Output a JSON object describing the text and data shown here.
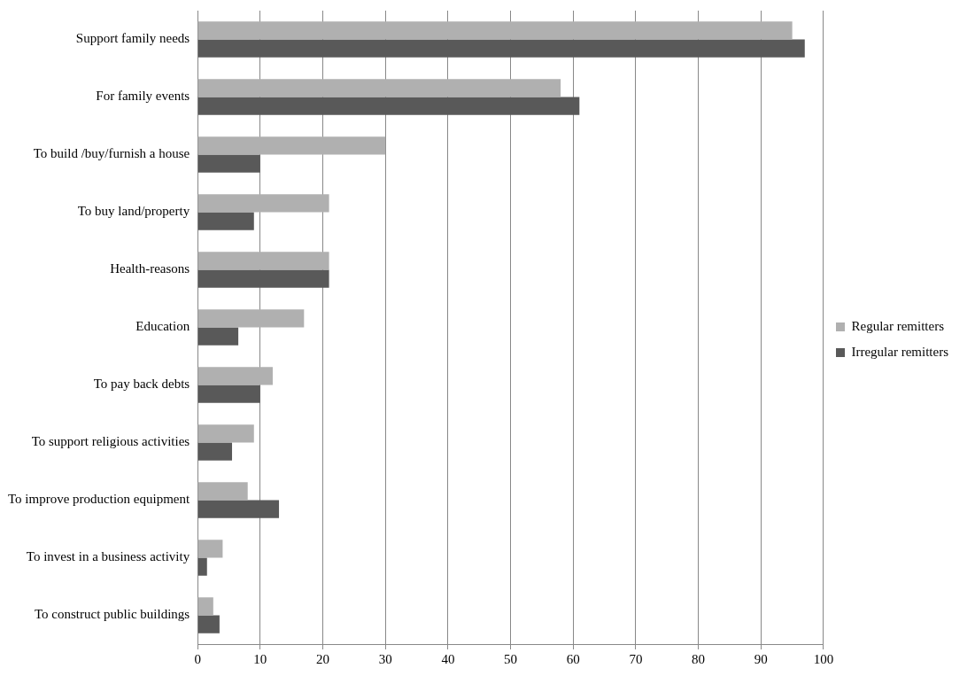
{
  "chart_data": {
    "type": "bar",
    "orientation": "horizontal",
    "categories": [
      "Support family needs",
      "For family events",
      "To build /buy/furnish a house",
      "To buy land/property",
      "Health-reasons",
      "Education",
      "To pay back debts",
      "To support religious activities",
      "To improve production equipment",
      "To invest in a business activity",
      "To construct public buildings"
    ],
    "series": [
      {
        "name": "Regular remitters",
        "color": "#b0b0b0",
        "values": [
          95,
          58,
          30,
          21,
          21,
          17,
          12,
          9,
          8,
          4,
          2.5
        ]
      },
      {
        "name": "Irregular remitters",
        "color": "#595959",
        "values": [
          97,
          61,
          10,
          9,
          21,
          6.5,
          10,
          5.5,
          13,
          1.5,
          3.5
        ]
      }
    ],
    "xlim": [
      0,
      100
    ],
    "xticks": [
      0,
      10,
      20,
      30,
      40,
      50,
      60,
      70,
      80,
      90,
      100
    ],
    "grid": "x",
    "legend": "right"
  }
}
